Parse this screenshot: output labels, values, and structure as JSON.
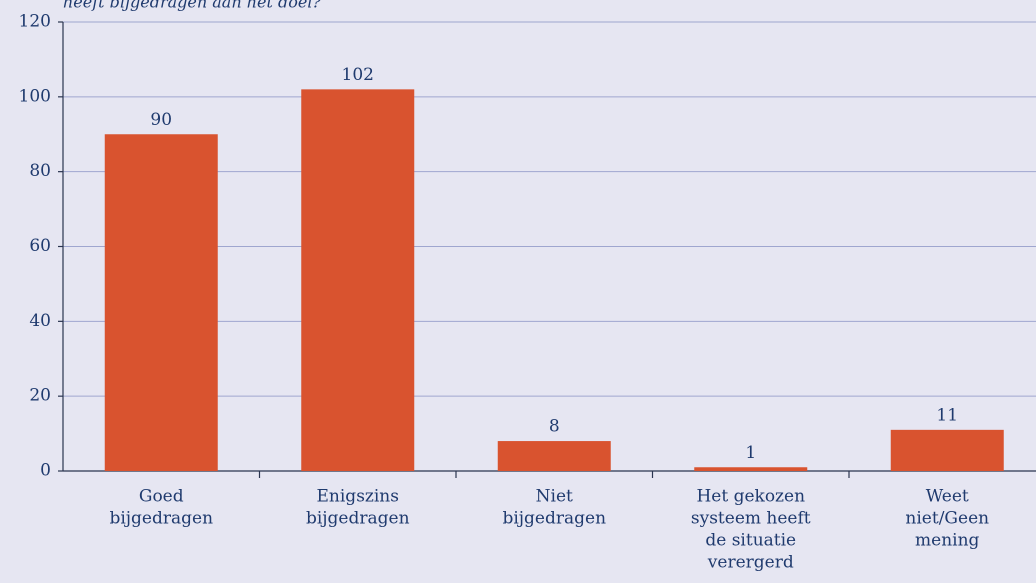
{
  "chart_data": {
    "type": "bar",
    "title": "heeft bijgedragen aan het doel?",
    "categories": [
      [
        "Goed",
        "bijgedragen"
      ],
      [
        "Enigszins",
        "bijgedragen"
      ],
      [
        "Niet",
        "bijgedragen"
      ],
      [
        "Het gekozen",
        "systeem heeft",
        "de situatie",
        "verergerd"
      ],
      [
        "Weet",
        "niet/Geen",
        "mening"
      ]
    ],
    "values": [
      90,
      102,
      8,
      1,
      11
    ],
    "color": "#d9532f",
    "ylim": [
      0,
      120
    ],
    "yticks": [
      0,
      20,
      40,
      60,
      80,
      100,
      120
    ],
    "grid": true
  }
}
